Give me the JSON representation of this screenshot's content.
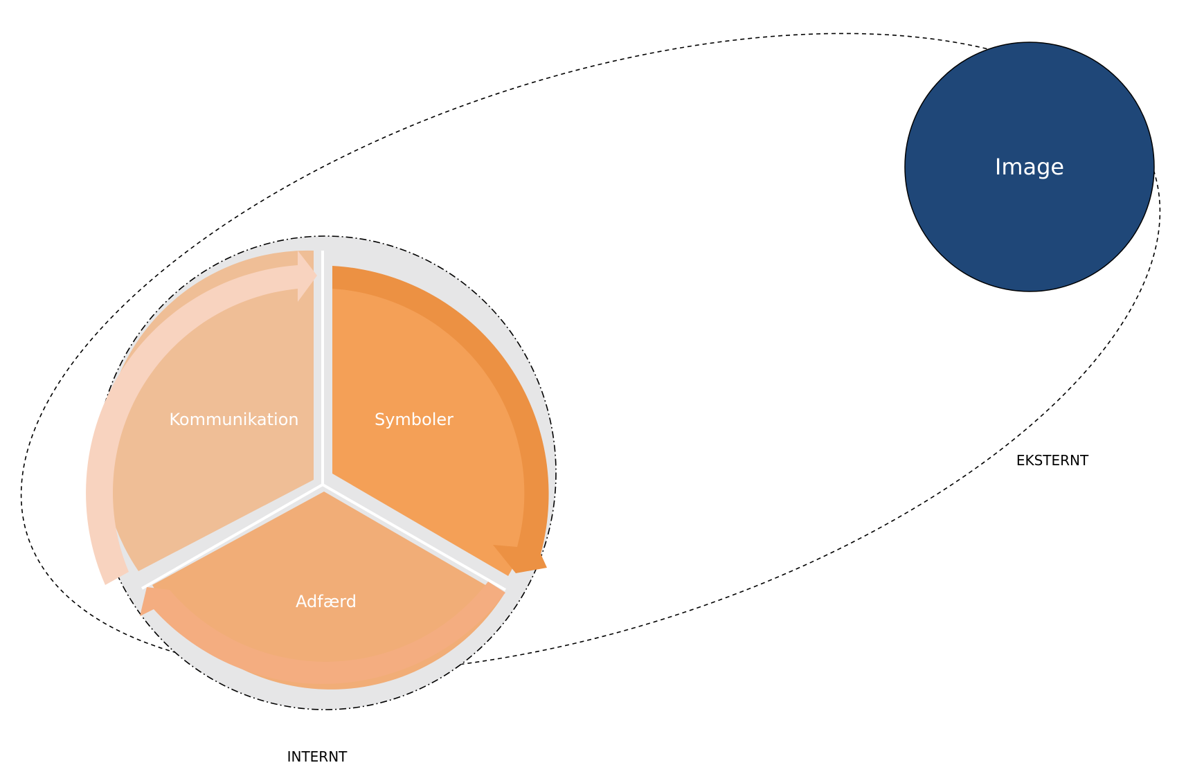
{
  "diagram": {
    "external_label": "EKSTERNT",
    "internal_label": "INTERNT",
    "image_node": {
      "label": "Image",
      "color": "#1f4778"
    },
    "segments": [
      {
        "key": "kommunikation",
        "label": "Kommunikation",
        "color": "#efbe96",
        "arrow_color": "#f8d3bf"
      },
      {
        "key": "symboler",
        "label": "Symboler",
        "color": "#f4a057",
        "arrow_color": "#ec9143"
      },
      {
        "key": "adfaerd",
        "label": "Adfærd",
        "color": "#f1ad77",
        "arrow_color": "#f4ad80"
      }
    ],
    "ring_color": "#e6e6e7"
  }
}
